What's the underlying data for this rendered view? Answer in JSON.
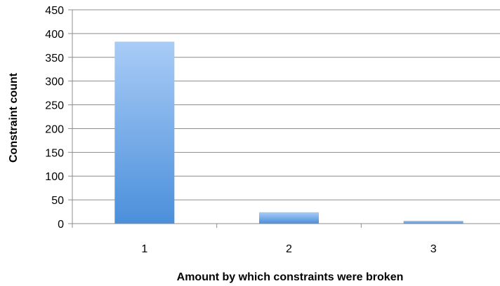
{
  "chart_data": {
    "type": "bar",
    "title": "",
    "xlabel": "Amount by which constraints were broken",
    "ylabel": "Constraint count",
    "categories": [
      "1",
      "2",
      "3"
    ],
    "series": [
      {
        "values": [
          383,
          24,
          6
        ]
      }
    ],
    "ylim": [
      0,
      450
    ],
    "yticks": [
      0,
      50,
      100,
      150,
      200,
      250,
      300,
      350,
      400,
      450
    ],
    "grid": true,
    "legend": "none",
    "colors": {
      "bar_top": "#a9ccf6",
      "bar_bottom": "#4b8fdb",
      "gridline": "#8c8c8c",
      "axis": "#8c8c8c"
    }
  }
}
